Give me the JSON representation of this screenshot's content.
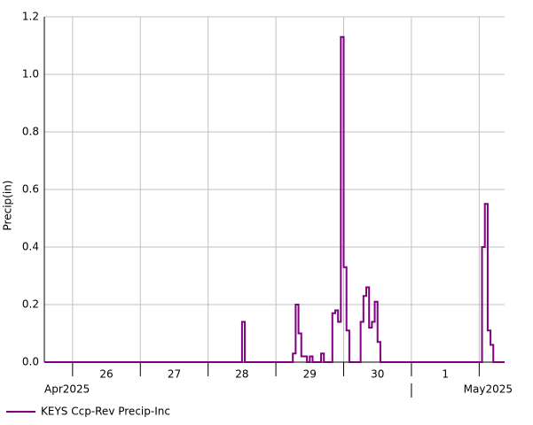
{
  "chart_data": {
    "type": "line",
    "step": "post",
    "y_label": "Precip(in)",
    "series": [
      {
        "name": "KEYS Ccp-Rev Precip-Inc",
        "color": "#800080",
        "x": [
          "2025-04-25 14:00",
          "2025-04-28 12:00",
          "2025-04-28 13:00",
          "2025-04-29 06:00",
          "2025-04-29 07:00",
          "2025-04-29 08:00",
          "2025-04-29 09:00",
          "2025-04-29 10:00",
          "2025-04-29 11:00",
          "2025-04-29 12:00",
          "2025-04-29 13:00",
          "2025-04-29 16:00",
          "2025-04-29 17:00",
          "2025-04-29 20:00",
          "2025-04-29 21:00",
          "2025-04-29 22:00",
          "2025-04-29 23:00",
          "2025-04-30 00:00",
          "2025-04-30 01:00",
          "2025-04-30 02:00",
          "2025-04-30 06:00",
          "2025-04-30 07:00",
          "2025-04-30 08:00",
          "2025-04-30 09:00",
          "2025-04-30 10:00",
          "2025-04-30 11:00",
          "2025-04-30 12:00",
          "2025-04-30 13:00",
          "2025-05-02 01:00",
          "2025-05-02 02:00",
          "2025-05-02 03:00",
          "2025-05-02 04:00",
          "2025-05-02 05:00",
          "2025-05-02 09:00"
        ],
        "values": [
          0,
          0.14,
          0,
          0.03,
          0.2,
          0.1,
          0.02,
          0.02,
          0,
          0.02,
          0,
          0.03,
          0,
          0.17,
          0.18,
          0.14,
          1.13,
          0.33,
          0.11,
          0,
          0.14,
          0.23,
          0.26,
          0.12,
          0.14,
          0.21,
          0.07,
          0,
          0.4,
          0.55,
          0.11,
          0.06,
          0,
          0
        ]
      }
    ],
    "xlim": [
      "2025-04-25 14:00",
      "2025-05-02 09:00"
    ],
    "xticks": [
      "2025-04-26 00:00",
      "2025-04-27 00:00",
      "2025-04-28 00:00",
      "2025-04-29 00:00",
      "2025-04-30 00:00",
      "2025-05-01 00:00",
      "2025-05-02 00:00"
    ],
    "day_labels": [
      {
        "value": "2025-04-26 12:00",
        "label": "26"
      },
      {
        "value": "2025-04-27 12:00",
        "label": "27"
      },
      {
        "value": "2025-04-28 12:00",
        "label": "28"
      },
      {
        "value": "2025-04-29 12:00",
        "label": "29"
      },
      {
        "value": "2025-04-30 12:00",
        "label": "30"
      },
      {
        "value": "2025-05-01 12:00",
        "label": "1"
      }
    ],
    "month_labels": [
      {
        "value": "2025-04-25 14:00",
        "label": "Apr2025"
      },
      {
        "value": "2025-05-01 00:00",
        "label": "May2025"
      }
    ],
    "ylim": [
      0,
      1.2
    ],
    "yticks": [
      {
        "value": 0,
        "label": "0.0"
      },
      0.2,
      0.4,
      0.6,
      0.8,
      {
        "value": 1,
        "label": "1.0"
      },
      1.2
    ],
    "grid": true,
    "legend": "bottom-left"
  }
}
